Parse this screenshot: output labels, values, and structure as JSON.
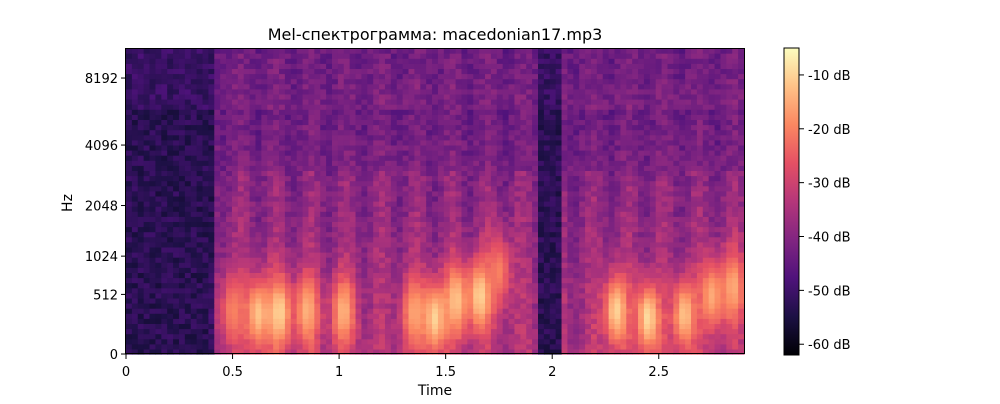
{
  "chart_data": {
    "type": "heatmap",
    "title": "Mel-спектрограмма: macedonian17.mp3",
    "xlabel": "Time",
    "ylabel": "Hz",
    "xlim": [
      0,
      2.9
    ],
    "y_scale": "mel",
    "ylim_hz": [
      0,
      11025
    ],
    "x_ticks": [
      {
        "value": 0,
        "label": "0"
      },
      {
        "value": 0.5,
        "label": "0.5"
      },
      {
        "value": 1,
        "label": "1"
      },
      {
        "value": 1.5,
        "label": "1.5"
      },
      {
        "value": 2,
        "label": "2"
      },
      {
        "value": 2.5,
        "label": "2.5"
      }
    ],
    "y_ticks": [
      {
        "value": 0,
        "label": "0"
      },
      {
        "value": 512,
        "label": "512"
      },
      {
        "value": 1024,
        "label": "1024"
      },
      {
        "value": 2048,
        "label": "2048"
      },
      {
        "value": 4096,
        "label": "4096"
      },
      {
        "value": 8192,
        "label": "8192"
      }
    ],
    "colorbar": {
      "colormap": "magma",
      "range_db": [
        -62,
        -5
      ],
      "ticks": [
        {
          "value": -10,
          "label": "-10 dB"
        },
        {
          "value": -20,
          "label": "-20 dB"
        },
        {
          "value": -30,
          "label": "-30 dB"
        },
        {
          "value": -40,
          "label": "-40 dB"
        },
        {
          "value": -50,
          "label": "-50 dB"
        },
        {
          "value": -60,
          "label": "-60 dB"
        }
      ]
    },
    "segments": [
      {
        "start": 0.42,
        "end": 1.92
      },
      {
        "start": 2.04,
        "end": 2.9
      }
    ],
    "peaks": [
      {
        "t": 0.5,
        "hz": 350,
        "db": -20
      },
      {
        "t": 0.62,
        "hz": 320,
        "db": -12
      },
      {
        "t": 0.72,
        "hz": 330,
        "db": -10
      },
      {
        "t": 0.85,
        "hz": 350,
        "db": -14
      },
      {
        "t": 1.02,
        "hz": 340,
        "db": -14
      },
      {
        "t": 1.35,
        "hz": 330,
        "db": -16
      },
      {
        "t": 1.45,
        "hz": 280,
        "db": -10
      },
      {
        "t": 1.55,
        "hz": 450,
        "db": -12
      },
      {
        "t": 1.66,
        "hz": 500,
        "db": -10
      },
      {
        "t": 1.75,
        "hz": 800,
        "db": -20
      },
      {
        "t": 2.3,
        "hz": 350,
        "db": -10
      },
      {
        "t": 2.45,
        "hz": 280,
        "db": -9
      },
      {
        "t": 2.62,
        "hz": 310,
        "db": -12
      },
      {
        "t": 2.75,
        "hz": 500,
        "db": -15
      },
      {
        "t": 2.85,
        "hz": 600,
        "db": -15
      }
    ],
    "columns": 105,
    "bands": 60
  }
}
